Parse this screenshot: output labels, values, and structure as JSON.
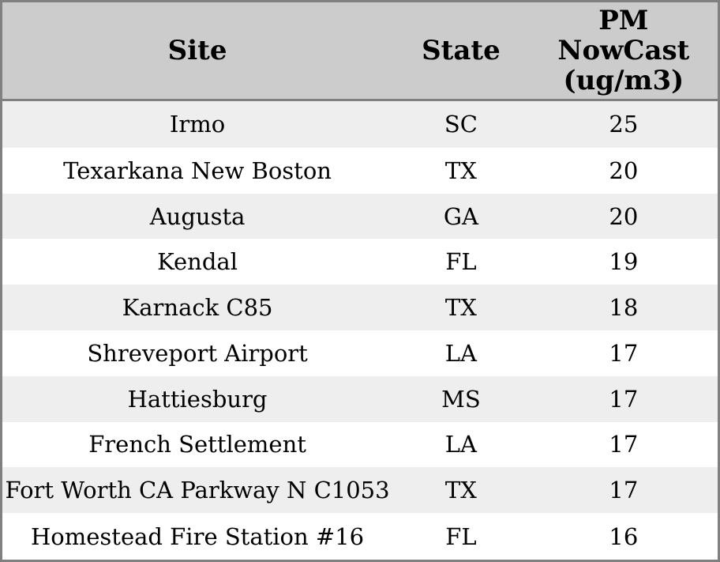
{
  "chart_data": {
    "type": "table",
    "columns": [
      "Site",
      "State",
      "PM NowCast (ug/m3)"
    ],
    "rows": [
      [
        "Irmo",
        "SC",
        25
      ],
      [
        "Texarkana New Boston",
        "TX",
        20
      ],
      [
        "Augusta",
        "GA",
        20
      ],
      [
        "Kendal",
        "FL",
        19
      ],
      [
        "Karnack C85",
        "TX",
        18
      ],
      [
        "Shreveport Airport",
        "LA",
        17
      ],
      [
        "Hattiesburg",
        "MS",
        17
      ],
      [
        "French Settlement",
        "LA",
        17
      ],
      [
        "Fort Worth CA Parkway N C1053",
        "TX",
        17
      ],
      [
        "Homestead Fire Station #16",
        "FL",
        16
      ]
    ],
    "layout": {
      "header_wrap_lines": [
        "PM",
        "NowCast",
        "(ug/m3)"
      ],
      "zebra_striping": "odd rows shaded",
      "grid": "outer border and header divider only"
    }
  },
  "colors": {
    "header_background": "#cccccc",
    "alt_row_background": "#eeeeee",
    "row_background": "#ffffff",
    "border": "#808080",
    "text": "#000000"
  }
}
